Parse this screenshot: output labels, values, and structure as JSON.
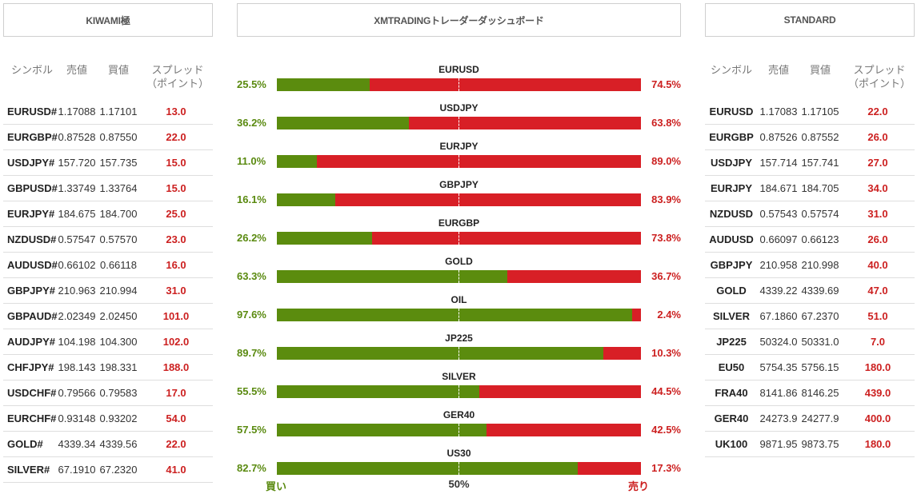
{
  "headers": {
    "left": "KIWAMI極",
    "middle": "XMTRADINGトレーダーダッシュボード",
    "right": "STANDARD"
  },
  "columns": {
    "symbol": "シンボル",
    "bid": "売値",
    "ask": "買値",
    "spread": "スプレッド（ポイント）"
  },
  "kiwami_rows": [
    {
      "symbol": "EURUSD#",
      "bid": "1.17088",
      "ask": "1.17101",
      "spread": "13.0"
    },
    {
      "symbol": "EURGBP#",
      "bid": "0.87528",
      "ask": "0.87550",
      "spread": "22.0"
    },
    {
      "symbol": "USDJPY#",
      "bid": "157.720",
      "ask": "157.735",
      "spread": "15.0"
    },
    {
      "symbol": "GBPUSD#",
      "bid": "1.33749",
      "ask": "1.33764",
      "spread": "15.0"
    },
    {
      "symbol": "EURJPY#",
      "bid": "184.675",
      "ask": "184.700",
      "spread": "25.0"
    },
    {
      "symbol": "NZDUSD#",
      "bid": "0.57547",
      "ask": "0.57570",
      "spread": "23.0"
    },
    {
      "symbol": "AUDUSD#",
      "bid": "0.66102",
      "ask": "0.66118",
      "spread": "16.0"
    },
    {
      "symbol": "GBPJPY#",
      "bid": "210.963",
      "ask": "210.994",
      "spread": "31.0"
    },
    {
      "symbol": "GBPAUD#",
      "bid": "2.02349",
      "ask": "2.02450",
      "spread": "101.0"
    },
    {
      "symbol": "AUDJPY#",
      "bid": "104.198",
      "ask": "104.300",
      "spread": "102.0"
    },
    {
      "symbol": "CHFJPY#",
      "bid": "198.143",
      "ask": "198.331",
      "spread": "188.0"
    },
    {
      "symbol": "USDCHF#",
      "bid": "0.79566",
      "ask": "0.79583",
      "spread": "17.0"
    },
    {
      "symbol": "EURCHF#",
      "bid": "0.93148",
      "ask": "0.93202",
      "spread": "54.0"
    },
    {
      "symbol": "GOLD#",
      "bid": "4339.34",
      "ask": "4339.56",
      "spread": "22.0"
    },
    {
      "symbol": "SILVER#",
      "bid": "67.1910",
      "ask": "67.2320",
      "spread": "41.0"
    }
  ],
  "standard_rows": [
    {
      "symbol": "EURUSD",
      "bid": "1.17083",
      "ask": "1.17105",
      "spread": "22.0"
    },
    {
      "symbol": "EURGBP",
      "bid": "0.87526",
      "ask": "0.87552",
      "spread": "26.0"
    },
    {
      "symbol": "USDJPY",
      "bid": "157.714",
      "ask": "157.741",
      "spread": "27.0"
    },
    {
      "symbol": "EURJPY",
      "bid": "184.671",
      "ask": "184.705",
      "spread": "34.0"
    },
    {
      "symbol": "NZDUSD",
      "bid": "0.57543",
      "ask": "0.57574",
      "spread": "31.0"
    },
    {
      "symbol": "AUDUSD",
      "bid": "0.66097",
      "ask": "0.66123",
      "spread": "26.0"
    },
    {
      "symbol": "GBPJPY",
      "bid": "210.958",
      "ask": "210.998",
      "spread": "40.0"
    },
    {
      "symbol": "GOLD",
      "bid": "4339.22",
      "ask": "4339.69",
      "spread": "47.0"
    },
    {
      "symbol": "SILVER",
      "bid": "67.1860",
      "ask": "67.2370",
      "spread": "51.0"
    },
    {
      "symbol": "JP225",
      "bid": "50324.0",
      "ask": "50331.0",
      "spread": "7.0"
    },
    {
      "symbol": "EU50",
      "bid": "5754.35",
      "ask": "5756.15",
      "spread": "180.0"
    },
    {
      "symbol": "FRA40",
      "bid": "8141.86",
      "ask": "8146.25",
      "spread": "439.0"
    },
    {
      "symbol": "GER40",
      "bid": "24273.9",
      "ask": "24277.9",
      "spread": "400.0"
    },
    {
      "symbol": "UK100",
      "bid": "9871.95",
      "ask": "9873.75",
      "spread": "180.0"
    }
  ],
  "sentiment": [
    {
      "symbol": "EURUSD",
      "buy": 25.5,
      "sell": 74.5,
      "buy_text": "25.5%",
      "sell_text": "74.5%"
    },
    {
      "symbol": "USDJPY",
      "buy": 36.2,
      "sell": 63.8,
      "buy_text": "36.2%",
      "sell_text": "63.8%"
    },
    {
      "symbol": "EURJPY",
      "buy": 11.0,
      "sell": 89.0,
      "buy_text": "11.0%",
      "sell_text": "89.0%"
    },
    {
      "symbol": "GBPJPY",
      "buy": 16.1,
      "sell": 83.9,
      "buy_text": "16.1%",
      "sell_text": "83.9%"
    },
    {
      "symbol": "EURGBP",
      "buy": 26.2,
      "sell": 73.8,
      "buy_text": "26.2%",
      "sell_text": "73.8%"
    },
    {
      "symbol": "GOLD",
      "buy": 63.3,
      "sell": 36.7,
      "buy_text": "63.3%",
      "sell_text": "36.7%"
    },
    {
      "symbol": "OIL",
      "buy": 97.6,
      "sell": 2.4,
      "buy_text": "97.6%",
      "sell_text": "2.4%"
    },
    {
      "symbol": "JP225",
      "buy": 89.7,
      "sell": 10.3,
      "buy_text": "89.7%",
      "sell_text": "10.3%"
    },
    {
      "symbol": "SILVER",
      "buy": 55.5,
      "sell": 44.5,
      "buy_text": "55.5%",
      "sell_text": "44.5%"
    },
    {
      "symbol": "GER40",
      "buy": 57.5,
      "sell": 42.5,
      "buy_text": "57.5%",
      "sell_text": "42.5%"
    },
    {
      "symbol": "US30",
      "buy": 82.7,
      "sell": 17.3,
      "buy_text": "82.7%",
      "sell_text": "17.3%"
    }
  ],
  "footer": {
    "buy_label": "買い",
    "mid_label": "50%",
    "sell_label": "売り"
  },
  "colors": {
    "buy": "#5b8c0e",
    "sell": "#d81f26",
    "spread_text": "#cc2020"
  }
}
